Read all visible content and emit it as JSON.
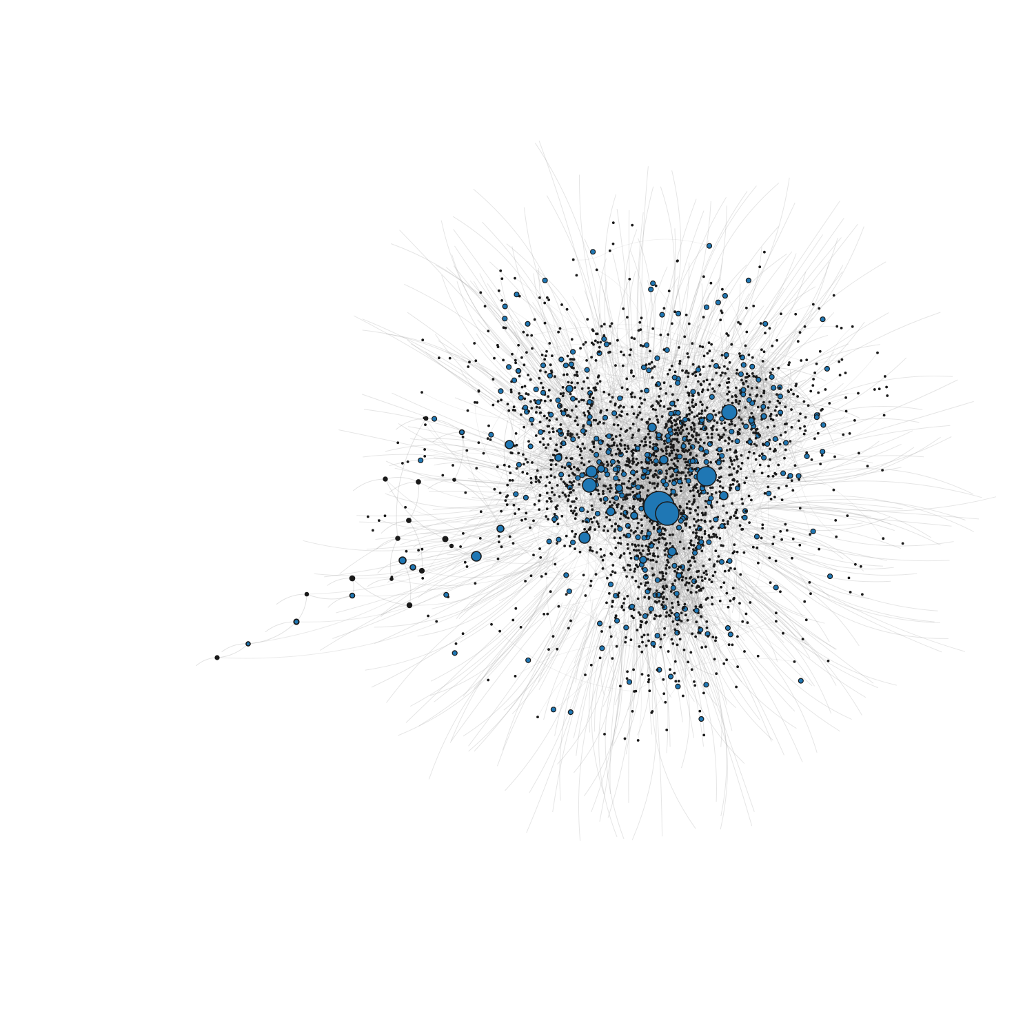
{
  "diagram": {
    "type": "network-graph",
    "layout": "force-directed",
    "node_fill": "#1f77b4",
    "node_stroke": "#1a1a1a",
    "edge_color": "#a0a0a0",
    "background": "#ffffff",
    "labels_shown": false
  }
}
